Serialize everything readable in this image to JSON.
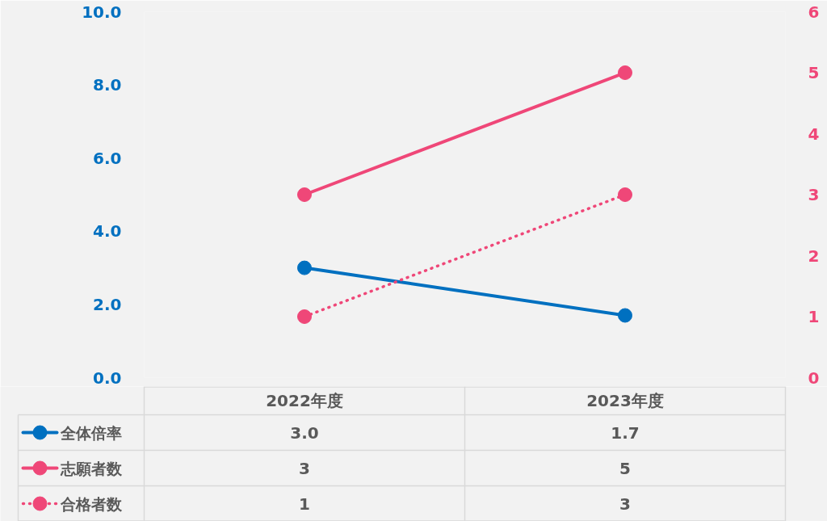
{
  "chart_data": {
    "type": "line",
    "categories": [
      "2022年度",
      "2023年度"
    ],
    "series": [
      {
        "name": "全体倍率",
        "color": "#0070c0",
        "values": [
          3.0,
          1.7
        ],
        "value_labels": [
          "3.0",
          "1.7"
        ],
        "line_style": "solid"
      },
      {
        "name": "志願者数",
        "color": "#ef4778",
        "values": [
          3,
          5
        ],
        "axis": "y2",
        "value_labels": [
          "3",
          "5"
        ],
        "line_style": "solid"
      },
      {
        "name": "合格者数",
        "color": "#ef4778",
        "values": [
          1,
          3
        ],
        "axis": "y2",
        "value_labels": [
          "1",
          "3"
        ],
        "line_style": "dotted"
      }
    ],
    "ylim": [
      0,
      10
    ],
    "yticks": [
      {
        "value": 0,
        "label": "0.0"
      },
      {
        "value": 2,
        "label": "2.0"
      },
      {
        "value": 4,
        "label": "4.0"
      },
      {
        "value": 6,
        "label": "6.0"
      },
      {
        "value": 8,
        "label": "8.0"
      },
      {
        "value": 10,
        "label": "10.0"
      }
    ],
    "y2lim": [
      0,
      6
    ],
    "y2ticks": [
      0,
      1,
      2,
      3,
      4,
      5,
      6
    ],
    "marker": "circle",
    "grid": false,
    "legend": "bottom left"
  }
}
